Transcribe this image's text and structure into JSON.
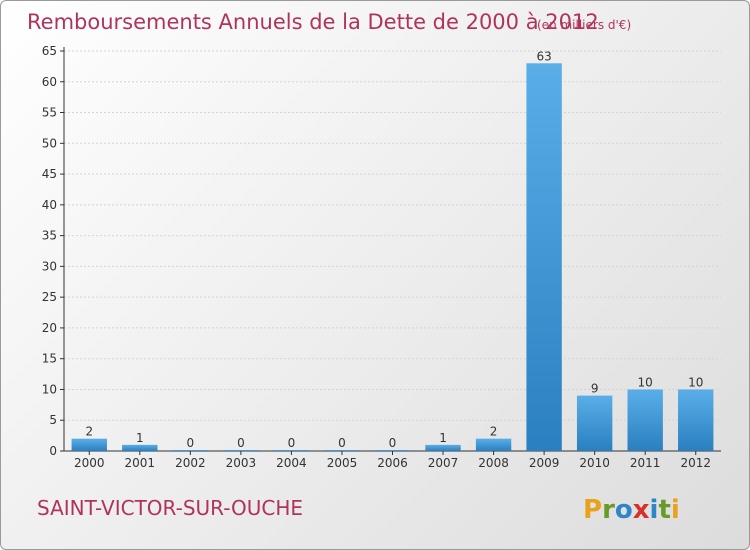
{
  "colors": {
    "title": "#b0335d",
    "bar_light": "#5aaee8",
    "bar_dark": "#2a7fc0",
    "axis": "#333333",
    "grid": "#d4d4d4"
  },
  "chart_data": {
    "type": "bar",
    "title": "Remboursements Annuels de la Dette de 2000 à 2012",
    "subtitle": "(en milliers d'€)",
    "xlabel": "",
    "ylabel": "",
    "categories": [
      "2000",
      "2001",
      "2002",
      "2003",
      "2004",
      "2005",
      "2006",
      "2007",
      "2008",
      "2009",
      "2010",
      "2011",
      "2012"
    ],
    "values": [
      2,
      1,
      0,
      0,
      0,
      0,
      0,
      1,
      2,
      63,
      9,
      10,
      10
    ],
    "ylim": [
      0,
      65
    ],
    "yticks": [
      0,
      5,
      10,
      15,
      20,
      25,
      30,
      35,
      40,
      45,
      50,
      55,
      60,
      65
    ],
    "grid": true,
    "legend": "none"
  },
  "footer": {
    "commune": "SAINT-VICTOR-SUR-OUCHE",
    "brand_letters": [
      {
        "char": "P",
        "color": "#e8a21c"
      },
      {
        "char": "r",
        "color": "#6a9a2a"
      },
      {
        "char": "o",
        "color": "#2e86c8"
      },
      {
        "char": "x",
        "color": "#d6322b"
      },
      {
        "char": "i",
        "color": "#2e86c8"
      },
      {
        "char": "t",
        "color": "#6a9a2a"
      },
      {
        "char": "i",
        "color": "#e8a21c"
      }
    ]
  }
}
